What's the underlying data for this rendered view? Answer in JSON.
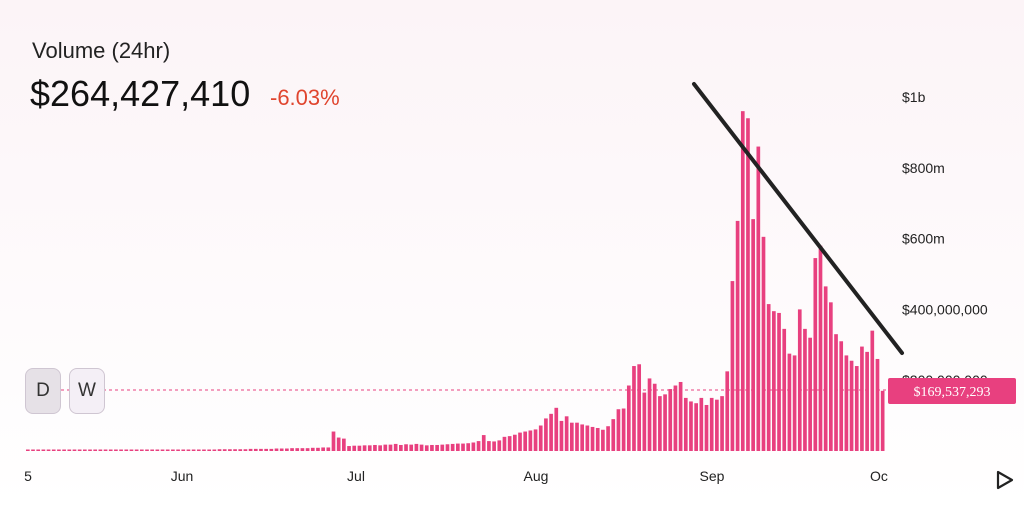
{
  "header": {
    "title": "Volume (24hr)",
    "value": "$264,427,410",
    "change": "-6.03%"
  },
  "controls": {
    "day_label": "D",
    "week_label": "W"
  },
  "play_icon": "play-icon",
  "colors": {
    "bar": "#e8407f",
    "change_negative": "#e0452e",
    "crosshair": "#e8407f",
    "trendline": "#222222"
  },
  "chart_data": {
    "type": "bar",
    "x_tick_labels": [
      "5",
      "Jun",
      "Jul",
      "Aug",
      "Sep",
      "Oc"
    ],
    "y_tick_labels": [
      "$1b",
      "$800m",
      "$600m",
      "$400,000,000",
      "$200,000,000"
    ],
    "ylim": [
      0,
      1000000000
    ],
    "grid": false,
    "current_value_label": "$169,537,293",
    "current_value": 169537293,
    "annotations": [
      "descending trendline drawn from the early-September peak to the late-September lows"
    ],
    "values": [
      3000000,
      3000000,
      3000000,
      3000000,
      3000000,
      3000000,
      3000000,
      3000000,
      3000000,
      3000000,
      3000000,
      3000000,
      3000000,
      3000000,
      3000000,
      3000000,
      3000000,
      3000000,
      3000000,
      3000000,
      3000000,
      3000000,
      3000000,
      3000000,
      3000000,
      3000000,
      3000000,
      3000000,
      4000000,
      4000000,
      4000000,
      4000000,
      4000000,
      4000000,
      4000000,
      4000000,
      4000000,
      5000000,
      5000000,
      5000000,
      5000000,
      5000000,
      5000000,
      6000000,
      6000000,
      6000000,
      6000000,
      6000000,
      7000000,
      7000000,
      7000000,
      8000000,
      8000000,
      8000000,
      8000000,
      9000000,
      9000000,
      10000000,
      10000000,
      55000000,
      38000000,
      35000000,
      14000000,
      15000000,
      15000000,
      16000000,
      16000000,
      17000000,
      16000000,
      18000000,
      18000000,
      20000000,
      17000000,
      19000000,
      18000000,
      20000000,
      18000000,
      16000000,
      17000000,
      17000000,
      18000000,
      19000000,
      20000000,
      21000000,
      21000000,
      22000000,
      24000000,
      28000000,
      45000000,
      28000000,
      27000000,
      30000000,
      40000000,
      42000000,
      46000000,
      52000000,
      55000000,
      58000000,
      61000000,
      72000000,
      92000000,
      105000000,
      122000000,
      85000000,
      98000000,
      80000000,
      80000000,
      75000000,
      72000000,
      68000000,
      65000000,
      60000000,
      70000000,
      90000000,
      118000000,
      120000000,
      185000000,
      240000000,
      245000000,
      165000000,
      205000000,
      190000000,
      155000000,
      160000000,
      175000000,
      185000000,
      195000000,
      150000000,
      140000000,
      135000000,
      150000000,
      130000000,
      150000000,
      145000000,
      155000000,
      225000000,
      480000000,
      650000000,
      960000000,
      940000000,
      655000000,
      860000000,
      605000000,
      415000000,
      395000000,
      390000000,
      345000000,
      275000000,
      270000000,
      400000000,
      345000000,
      320000000,
      545000000,
      580000000,
      465000000,
      420000000,
      330000000,
      310000000,
      270000000,
      255000000,
      240000000,
      295000000,
      280000000,
      340000000,
      260000000,
      170000000
    ]
  }
}
